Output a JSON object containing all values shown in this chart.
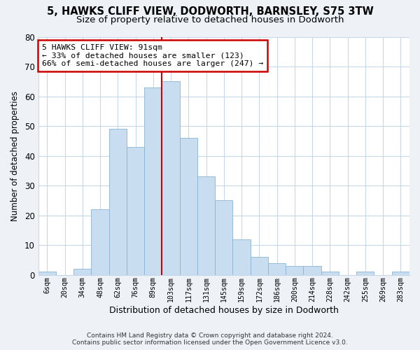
{
  "title": "5, HAWKS CLIFF VIEW, DODWORTH, BARNSLEY, S75 3TW",
  "subtitle": "Size of property relative to detached houses in Dodworth",
  "xlabel": "Distribution of detached houses by size in Dodworth",
  "ylabel": "Number of detached properties",
  "bar_color": "#c8ddef",
  "bar_edge_color": "#8ab4d4",
  "categories": [
    "6sqm",
    "20sqm",
    "34sqm",
    "48sqm",
    "62sqm",
    "76sqm",
    "89sqm",
    "103sqm",
    "117sqm",
    "131sqm",
    "145sqm",
    "159sqm",
    "172sqm",
    "186sqm",
    "200sqm",
    "214sqm",
    "228sqm",
    "242sqm",
    "255sqm",
    "269sqm",
    "283sqm"
  ],
  "values": [
    1,
    0,
    2,
    22,
    49,
    43,
    63,
    65,
    46,
    33,
    25,
    12,
    6,
    4,
    3,
    3,
    1,
    0,
    1,
    0,
    1
  ],
  "ylim": [
    0,
    80
  ],
  "yticks": [
    0,
    10,
    20,
    30,
    40,
    50,
    60,
    70,
    80
  ],
  "annotation_line1": "5 HAWKS CLIFF VIEW: 91sqm",
  "annotation_line2": "← 33% of detached houses are smaller (123)",
  "annotation_line3": "66% of semi-detached houses are larger (247) →",
  "footer_line1": "Contains HM Land Registry data © Crown copyright and database right 2024.",
  "footer_line2": "Contains public sector information licensed under the Open Government Licence v3.0.",
  "background_color": "#eef2f7",
  "plot_bg_color": "#ffffff",
  "grid_color": "#c8d8e8",
  "annotation_box_color": "#ffffff",
  "annotation_border_color": "#cc0000",
  "marker_line_color": "#cc0000",
  "marker_bar_index": 7,
  "title_fontsize": 10.5,
  "subtitle_fontsize": 9.5
}
